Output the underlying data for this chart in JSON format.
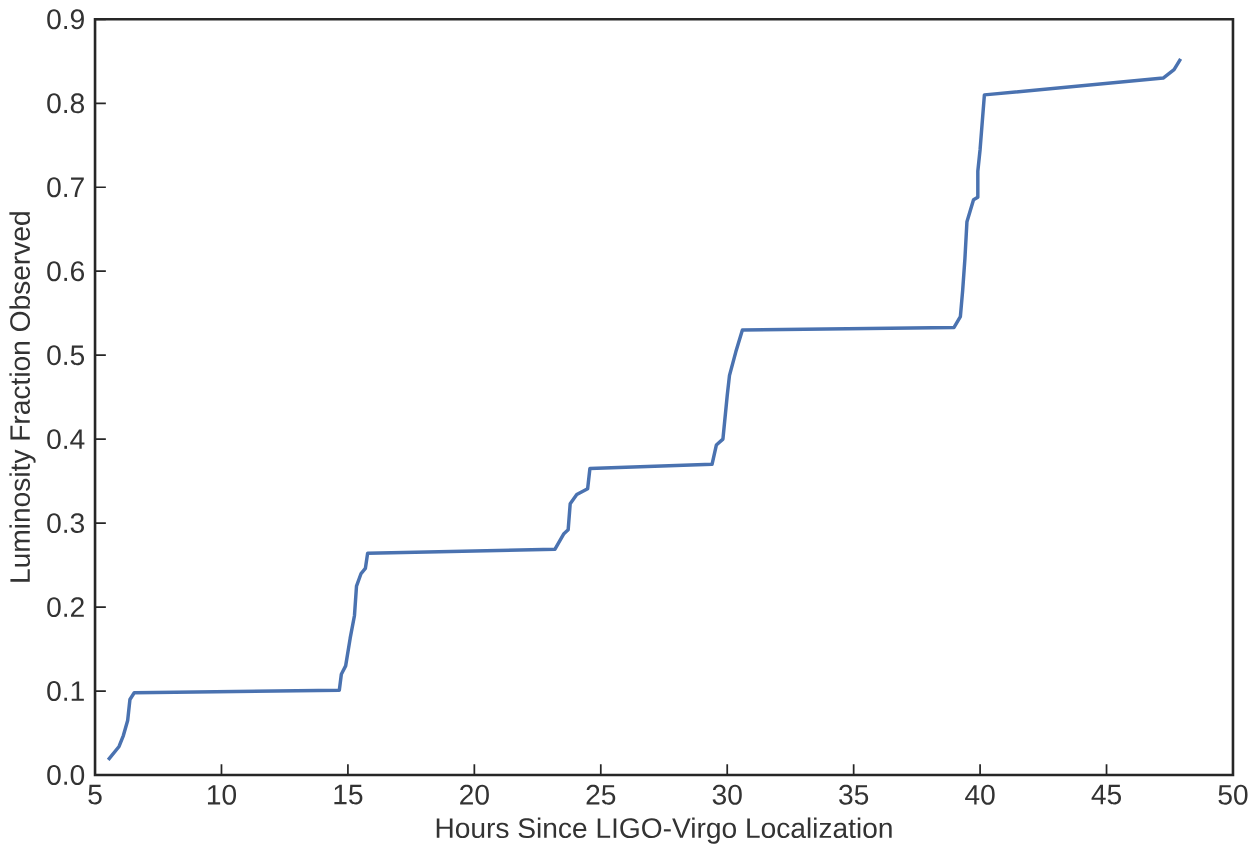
{
  "chart_data": {
    "type": "line",
    "xlabel": "Hours Since LIGO-Virgo Localization",
    "ylabel": "Luminosity Fraction Observed",
    "xlim": [
      5,
      50
    ],
    "xticks": [
      5,
      10,
      15,
      20,
      25,
      30,
      35,
      40,
      45,
      50
    ],
    "ylim": [
      0.0,
      0.9
    ],
    "yticks": [
      {
        "value": 0.0,
        "label": "0.0"
      },
      0.1,
      0.2,
      0.3,
      0.4,
      0.5,
      0.6,
      0.7,
      0.8,
      0.9
    ],
    "grid": false,
    "marker": "none",
    "line_style": "solid",
    "series": [
      {
        "color": "#4a72b0",
        "x": [
          5.52,
          5.95,
          6.12,
          6.29,
          6.38,
          6.55,
          14.66,
          14.74,
          14.91,
          15.09,
          15.26,
          15.34,
          15.52,
          15.69,
          15.78,
          23.19,
          23.53,
          23.71,
          23.79,
          24.05,
          24.48,
          24.57,
          29.4,
          29.57,
          29.83,
          30.0,
          30.09,
          30.34,
          30.6,
          38.97,
          39.22,
          39.31,
          39.4,
          39.48,
          39.74,
          39.91,
          39.91,
          40.0,
          40.17,
          47.24,
          47.67,
          47.93
        ],
        "values": [
          0.018,
          0.034,
          0.047,
          0.065,
          0.09,
          0.098,
          0.101,
          0.12,
          0.13,
          0.163,
          0.19,
          0.225,
          0.24,
          0.246,
          0.264,
          0.269,
          0.287,
          0.292,
          0.323,
          0.334,
          0.341,
          0.365,
          0.37,
          0.393,
          0.4,
          0.452,
          0.476,
          0.504,
          0.53,
          0.533,
          0.546,
          0.577,
          0.615,
          0.659,
          0.685,
          0.688,
          0.719,
          0.745,
          0.81,
          0.83,
          0.84,
          0.853
        ]
      }
    ]
  }
}
